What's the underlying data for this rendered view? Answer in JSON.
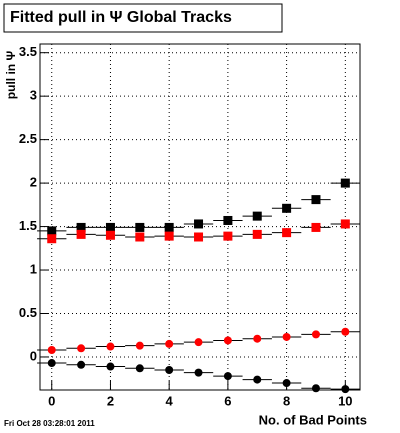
{
  "chart_data": {
    "type": "scatter",
    "title": "Fitted pull in  Ψ   Global Tracks",
    "y_label": "pull in Ψ",
    "x_label": "No. of Bad Points",
    "timestamp": "Fri Oct 28 03:28:01 2011",
    "x": [
      0,
      1,
      2,
      3,
      4,
      5,
      6,
      7,
      8,
      9,
      10
    ],
    "series": [
      {
        "color": "#000000",
        "marker": "square",
        "values": [
          1.45,
          1.49,
          1.49,
          1.49,
          1.49,
          1.53,
          1.57,
          1.62,
          1.71,
          1.81,
          2.0
        ]
      },
      {
        "color": "#ff0000",
        "marker": "square",
        "values": [
          1.36,
          1.41,
          1.4,
          1.38,
          1.39,
          1.38,
          1.39,
          1.41,
          1.43,
          1.49,
          1.53
        ]
      },
      {
        "color": "#ff0000",
        "marker": "circle",
        "values": [
          0.08,
          0.1,
          0.12,
          0.13,
          0.15,
          0.17,
          0.19,
          0.21,
          0.23,
          0.26,
          0.29
        ]
      },
      {
        "color": "#000000",
        "marker": "circle",
        "values": [
          -0.07,
          -0.09,
          -0.11,
          -0.13,
          -0.15,
          -0.18,
          -0.22,
          -0.26,
          -0.3,
          -0.36,
          -0.37
        ]
      }
    ],
    "xlim": [
      -0.4,
      10.5
    ],
    "ylim": [
      -0.38,
      3.6
    ],
    "xticks": [
      0,
      2,
      4,
      6,
      8,
      10
    ],
    "yticks": [
      0,
      0.5,
      1,
      1.5,
      2,
      2.5,
      3,
      3.5
    ],
    "grid": true
  }
}
